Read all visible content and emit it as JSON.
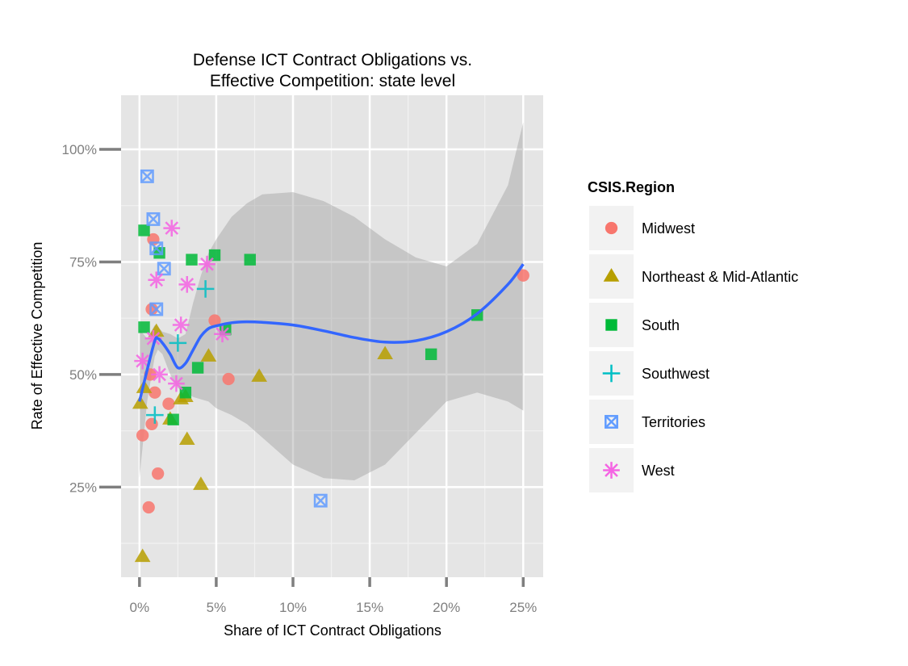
{
  "chart_data": {
    "type": "scatter",
    "title_line1": "Defense ICT Contract Obligations vs.",
    "title_line2": "Effective Competition: state level",
    "xlabel": "Share of ICT Contract Obligations",
    "ylabel": "Rate of Effective Competition",
    "xlim": [
      -0.012,
      0.263
    ],
    "ylim": [
      0.05,
      1.12
    ],
    "x_ticks": [
      0,
      0.05,
      0.1,
      0.15,
      0.2,
      0.25
    ],
    "x_tick_labels": [
      "0%",
      "5%",
      "10%",
      "15%",
      "20%",
      "25%"
    ],
    "y_ticks": [
      0.25,
      0.5,
      0.75,
      1.0
    ],
    "y_tick_labels": [
      "25%",
      "50%",
      "75%",
      "100%"
    ],
    "grid": true,
    "legend_title": "CSIS.Region",
    "legend_position": "right",
    "series": [
      {
        "name": "Midwest",
        "shape": "circle",
        "color": "#F8766D",
        "points": [
          [
            0.002,
            0.365
          ],
          [
            0.006,
            0.205
          ],
          [
            0.007,
            0.5
          ],
          [
            0.008,
            0.645
          ],
          [
            0.008,
            0.39
          ],
          [
            0.009,
            0.8
          ],
          [
            0.01,
            0.46
          ],
          [
            0.012,
            0.28
          ],
          [
            0.019,
            0.435
          ],
          [
            0.049,
            0.62
          ],
          [
            0.058,
            0.49
          ],
          [
            0.25,
            0.72
          ]
        ]
      },
      {
        "name": "Northeast & Mid-Atlantic",
        "shape": "triangle",
        "color": "#B79F00",
        "points": [
          [
            0.0005,
            0.435
          ],
          [
            0.002,
            0.095
          ],
          [
            0.003,
            0.47
          ],
          [
            0.011,
            0.595
          ],
          [
            0.02,
            0.4
          ],
          [
            0.027,
            0.445
          ],
          [
            0.03,
            0.45
          ],
          [
            0.031,
            0.355
          ],
          [
            0.04,
            0.255
          ],
          [
            0.045,
            0.54
          ],
          [
            0.078,
            0.495
          ],
          [
            0.16,
            0.545
          ]
        ]
      },
      {
        "name": "South",
        "shape": "square",
        "color": "#00BA38",
        "points": [
          [
            0.003,
            0.82
          ],
          [
            0.003,
            0.605
          ],
          [
            0.013,
            0.77
          ],
          [
            0.022,
            0.4
          ],
          [
            0.03,
            0.46
          ],
          [
            0.034,
            0.755
          ],
          [
            0.038,
            0.515
          ],
          [
            0.049,
            0.765
          ],
          [
            0.056,
            0.6
          ],
          [
            0.072,
            0.755
          ],
          [
            0.19,
            0.545
          ],
          [
            0.22,
            0.632
          ]
        ]
      },
      {
        "name": "Southwest",
        "shape": "plus",
        "color": "#00BFC4",
        "points": [
          [
            0.01,
            0.41
          ],
          [
            0.025,
            0.57
          ],
          [
            0.043,
            0.69
          ]
        ]
      },
      {
        "name": "Territories",
        "shape": "square-x",
        "color": "#619CFF",
        "points": [
          [
            0.005,
            0.94
          ],
          [
            0.009,
            0.845
          ],
          [
            0.011,
            0.78
          ],
          [
            0.011,
            0.645
          ],
          [
            0.016,
            0.735
          ],
          [
            0.118,
            0.22
          ]
        ]
      },
      {
        "name": "West",
        "shape": "asterisk",
        "color": "#F564E3",
        "points": [
          [
            0.002,
            0.53
          ],
          [
            0.009,
            0.58
          ],
          [
            0.011,
            0.71
          ],
          [
            0.013,
            0.5
          ],
          [
            0.021,
            0.825
          ],
          [
            0.024,
            0.48
          ],
          [
            0.027,
            0.61
          ],
          [
            0.031,
            0.7
          ],
          [
            0.044,
            0.745
          ],
          [
            0.054,
            0.59
          ]
        ]
      }
    ],
    "smooth_line": {
      "color": "#3366FF",
      "x": [
        0.0,
        0.005,
        0.01,
        0.012,
        0.015,
        0.02,
        0.025,
        0.03,
        0.035,
        0.04,
        0.045,
        0.05,
        0.06,
        0.07,
        0.08,
        0.1,
        0.12,
        0.14,
        0.16,
        0.18,
        0.2,
        0.22,
        0.24,
        0.25
      ],
      "y": [
        0.44,
        0.51,
        0.575,
        0.58,
        0.57,
        0.545,
        0.515,
        0.525,
        0.555,
        0.585,
        0.602,
        0.608,
        0.615,
        0.617,
        0.616,
        0.61,
        0.597,
        0.582,
        0.572,
        0.575,
        0.595,
        0.635,
        0.7,
        0.745
      ]
    },
    "confidence_band": {
      "color": "#999999",
      "x": [
        0.0,
        0.005,
        0.01,
        0.012,
        0.015,
        0.02,
        0.025,
        0.03,
        0.035,
        0.04,
        0.045,
        0.05,
        0.06,
        0.07,
        0.08,
        0.1,
        0.12,
        0.14,
        0.16,
        0.18,
        0.2,
        0.22,
        0.24,
        0.25
      ],
      "lower": [
        0.27,
        0.44,
        0.54,
        0.555,
        0.545,
        0.5,
        0.47,
        0.46,
        0.45,
        0.445,
        0.44,
        0.425,
        0.41,
        0.39,
        0.36,
        0.3,
        0.27,
        0.265,
        0.3,
        0.37,
        0.44,
        0.46,
        0.44,
        0.42
      ],
      "upper": [
        0.6,
        0.58,
        0.61,
        0.605,
        0.595,
        0.59,
        0.58,
        0.59,
        0.66,
        0.72,
        0.77,
        0.8,
        0.85,
        0.88,
        0.9,
        0.905,
        0.885,
        0.85,
        0.8,
        0.76,
        0.74,
        0.79,
        0.92,
        1.06
      ]
    }
  }
}
